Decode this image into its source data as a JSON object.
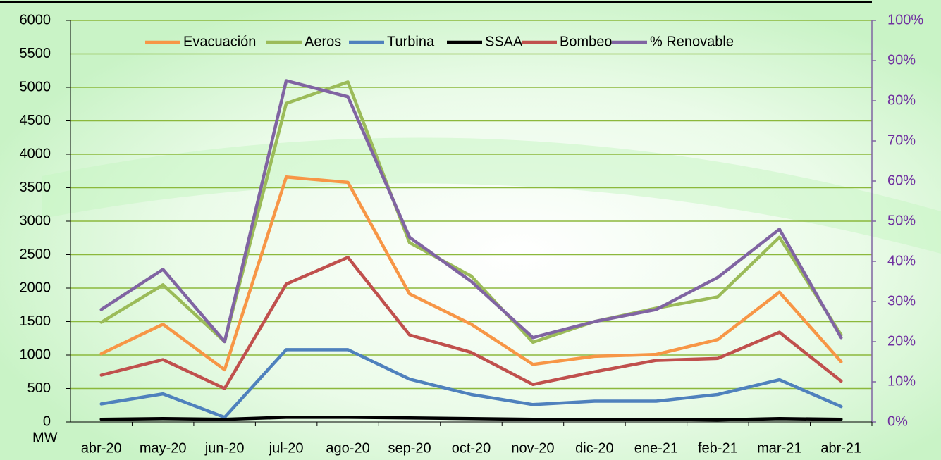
{
  "chart_data": {
    "type": "line",
    "categories": [
      "abr-20",
      "may-20",
      "jun-20",
      "jul-20",
      "ago-20",
      "sep-20",
      "oct-20",
      "nov-20",
      "dic-20",
      "ene-21",
      "feb-21",
      "mar-21",
      "abr-21"
    ],
    "y_label": "MW",
    "series": [
      {
        "name": "Evacuación",
        "color": "#f79646",
        "values": [
          1020,
          1460,
          780,
          3660,
          3580,
          1915,
          1460,
          860,
          980,
          1010,
          1230,
          1940,
          900
        ]
      },
      {
        "name": "Aeros",
        "color": "#9bbb59",
        "values": [
          1490,
          2050,
          1200,
          4760,
          5080,
          2680,
          2180,
          1190,
          1500,
          1700,
          1870,
          2760,
          1300
        ]
      },
      {
        "name": "Turbina",
        "color": "#4f81bd",
        "values": [
          270,
          420,
          70,
          1080,
          1080,
          640,
          410,
          260,
          310,
          310,
          410,
          630,
          230
        ]
      },
      {
        "name": "SSAA",
        "color": "#000000",
        "values": [
          40,
          50,
          40,
          70,
          70,
          60,
          50,
          40,
          40,
          40,
          30,
          50,
          40
        ]
      },
      {
        "name": "Bombeo",
        "color": "#c0504d",
        "values": [
          700,
          930,
          500,
          2060,
          2460,
          1300,
          1040,
          560,
          750,
          920,
          950,
          1340,
          610
        ]
      },
      {
        "name": "% Renovable",
        "color": "#8064a2",
        "axis": "y2",
        "values": [
          28,
          38,
          20,
          85,
          81,
          46,
          35,
          21,
          25,
          28,
          36,
          48,
          21
        ]
      }
    ],
    "ylim": [
      0,
      6000
    ],
    "yticks": [
      0,
      500,
      1000,
      1500,
      2000,
      2500,
      3000,
      3500,
      4000,
      4500,
      5000,
      5500,
      6000
    ],
    "y2lim": [
      0,
      100
    ],
    "y2ticks": [
      {
        "value": 0,
        "label": "0%"
      },
      {
        "value": 10,
        "label": "10%"
      },
      {
        "value": 20,
        "label": "20%"
      },
      {
        "value": 30,
        "label": "30%"
      },
      {
        "value": 40,
        "label": "40%"
      },
      {
        "value": 50,
        "label": "50%"
      },
      {
        "value": 60,
        "label": "60%"
      },
      {
        "value": 70,
        "label": "70%"
      },
      {
        "value": 80,
        "label": "80%"
      },
      {
        "value": 90,
        "label": "90%"
      },
      {
        "value": 100,
        "label": "100%"
      }
    ],
    "grid": true,
    "grid_color": "#8cb83c",
    "y2_color": "#8064a2",
    "legend": "top"
  }
}
